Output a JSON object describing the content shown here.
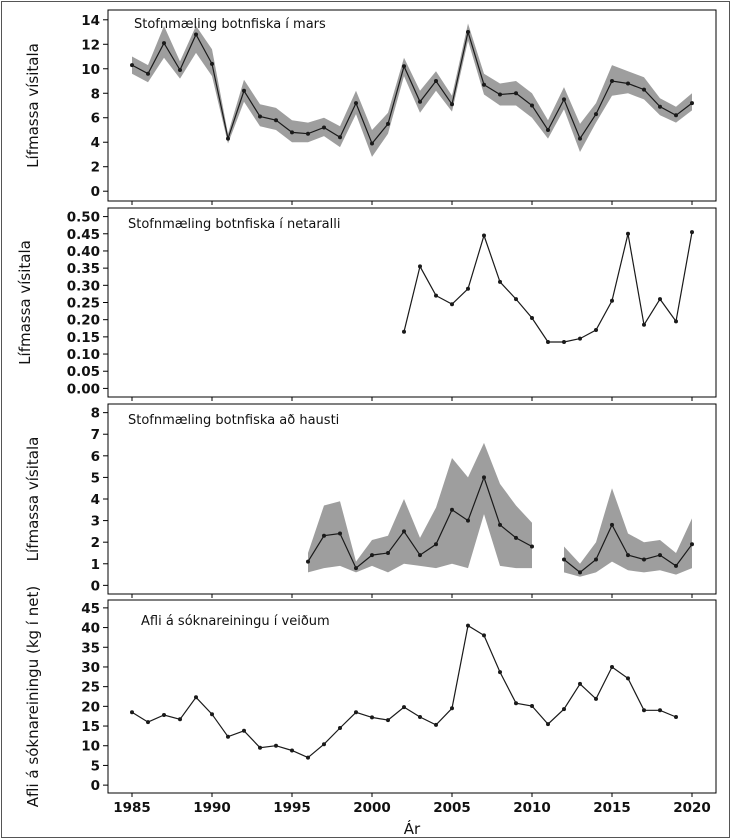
{
  "chart_data": [
    {
      "type": "line",
      "title": "Stofnmæling botnfiska í mars",
      "ylabel": "Lífmassa vísitala",
      "ylim": [
        -0.8,
        14.8
      ],
      "yticks": [
        "0",
        "2",
        "4",
        "6",
        "8",
        "10",
        "12",
        "14"
      ],
      "ytick_values": [
        0,
        2,
        4,
        6,
        8,
        10,
        12,
        14
      ],
      "band": true,
      "series": [
        {
          "x": [
            1985,
            1986,
            1987,
            1988,
            1989,
            1990,
            1991,
            1992,
            1993,
            1994,
            1995,
            1996,
            1997,
            1998,
            1999,
            2000,
            2001,
            2002,
            2003,
            2004,
            2005,
            2006,
            2007,
            2008,
            2009,
            2010,
            2011,
            2012,
            2013,
            2014,
            2015,
            2016,
            2017,
            2018,
            2019,
            2020
          ],
          "values": [
            10.3,
            9.6,
            12.1,
            9.9,
            12.8,
            10.4,
            4.3,
            8.2,
            6.1,
            5.8,
            4.8,
            4.7,
            5.2,
            4.4,
            7.2,
            3.9,
            5.5,
            10.2,
            7.3,
            9.0,
            7.1,
            13.0,
            8.7,
            7.9,
            8.0,
            7.0,
            5.0,
            7.5,
            4.3,
            6.3,
            9.0,
            8.8,
            8.3,
            6.9,
            6.2,
            7.2
          ],
          "lower": [
            9.6,
            8.9,
            10.9,
            9.2,
            11.3,
            9.4,
            3.9,
            7.3,
            5.3,
            5.0,
            4.0,
            4.0,
            4.5,
            3.6,
            6.3,
            2.8,
            4.7,
            9.4,
            6.4,
            8.2,
            6.5,
            12.3,
            7.9,
            7.0,
            7.0,
            6.0,
            4.3,
            6.7,
            3.2,
            5.6,
            7.8,
            8.0,
            7.5,
            6.2,
            5.6,
            6.6
          ],
          "upper": [
            11.0,
            10.3,
            13.5,
            10.6,
            13.5,
            11.6,
            4.7,
            9.1,
            7.1,
            6.8,
            5.8,
            5.6,
            6.0,
            5.3,
            8.2,
            5.0,
            6.4,
            10.9,
            8.2,
            9.8,
            7.8,
            13.7,
            9.6,
            8.8,
            9.0,
            8.0,
            5.8,
            8.5,
            5.5,
            7.2,
            10.3,
            9.8,
            9.3,
            7.6,
            6.9,
            8.0
          ]
        }
      ]
    },
    {
      "type": "line",
      "title": "Stofnmæling botnfiska í netaralli",
      "ylabel": "Lífmassa vísitala",
      "ylim": [
        -0.025,
        0.525
      ],
      "yticks": [
        "0.00",
        "0.05",
        "0.10",
        "0.15",
        "0.20",
        "0.25",
        "0.30",
        "0.35",
        "0.40",
        "0.45",
        "0.50"
      ],
      "ytick_values": [
        0,
        0.05,
        0.1,
        0.15,
        0.2,
        0.25,
        0.3,
        0.35,
        0.4,
        0.45,
        0.5
      ],
      "band": false,
      "series": [
        {
          "x": [
            2002,
            2003,
            2004,
            2005,
            2006,
            2007,
            2008,
            2009,
            2010,
            2011,
            2012,
            2013,
            2014,
            2015,
            2016,
            2017,
            2018,
            2019,
            2020
          ],
          "values": [
            0.165,
            0.355,
            0.27,
            0.245,
            0.29,
            0.445,
            0.31,
            0.26,
            0.205,
            0.135,
            0.135,
            0.145,
            0.17,
            0.255,
            0.45,
            0.185,
            0.26,
            0.195,
            0.455
          ]
        }
      ]
    },
    {
      "type": "line",
      "title": "Stofnmæling botnfiska að hausti",
      "ylabel": "Lífmassa vísitala",
      "ylim": [
        -0.4,
        8.4
      ],
      "yticks": [
        "0",
        "1",
        "2",
        "3",
        "4",
        "5",
        "6",
        "7",
        "8"
      ],
      "ytick_values": [
        0,
        1,
        2,
        3,
        4,
        5,
        6,
        7,
        8
      ],
      "band": true,
      "series": [
        {
          "x": [
            1996,
            1997,
            1998,
            1999,
            2000,
            2001,
            2002,
            2003,
            2004,
            2005,
            2006,
            2007,
            2008,
            2009,
            2010
          ],
          "values": [
            1.1,
            2.3,
            2.4,
            0.8,
            1.4,
            1.5,
            2.5,
            1.4,
            1.9,
            3.5,
            3.0,
            5.0,
            2.8,
            2.2,
            1.8
          ],
          "lower": [
            0.6,
            0.8,
            0.9,
            0.6,
            0.9,
            0.6,
            1.0,
            0.9,
            0.8,
            1.0,
            0.8,
            3.3,
            0.9,
            0.8,
            0.8
          ],
          "upper": [
            1.5,
            3.7,
            3.9,
            1.1,
            2.1,
            2.3,
            4.0,
            2.2,
            3.6,
            5.9,
            5.0,
            6.6,
            4.7,
            3.7,
            2.9
          ]
        },
        {
          "x": [
            2012,
            2013,
            2014,
            2015,
            2016,
            2017,
            2018,
            2019,
            2020
          ],
          "values": [
            1.2,
            0.6,
            1.2,
            2.8,
            1.4,
            1.2,
            1.4,
            0.9,
            1.9
          ],
          "lower": [
            0.6,
            0.4,
            0.6,
            1.1,
            0.7,
            0.6,
            0.7,
            0.5,
            0.8
          ],
          "upper": [
            1.8,
            1.0,
            2.0,
            4.5,
            2.4,
            2.0,
            2.1,
            1.5,
            3.1
          ]
        }
      ]
    },
    {
      "type": "line",
      "title": "Afli á sóknareiningu í veiðum",
      "ylabel": "Afli á sóknareiningu (kg í net)",
      "xlabel": "Ár",
      "ylim": [
        -2,
        47
      ],
      "yticks": [
        "0",
        "5",
        "10",
        "15",
        "20",
        "25",
        "30",
        "35",
        "40",
        "45"
      ],
      "ytick_values": [
        0,
        5,
        10,
        15,
        20,
        25,
        30,
        35,
        40,
        45
      ],
      "xticks": [
        "1985",
        "1990",
        "1995",
        "2000",
        "2005",
        "2010",
        "2015",
        "2020"
      ],
      "xtick_values": [
        1985,
        1990,
        1995,
        2000,
        2005,
        2010,
        2015,
        2020
      ],
      "band": false,
      "series": [
        {
          "x": [
            1985,
            1986,
            1987,
            1988,
            1989,
            1990,
            1991,
            1992,
            1993,
            1994,
            1995,
            1996,
            1997,
            1998,
            1999,
            2000,
            2001,
            2002,
            2003,
            2004,
            2005,
            2006,
            2007,
            2008,
            2009,
            2010,
            2011,
            2012,
            2013,
            2014,
            2015,
            2016,
            2017,
            2018,
            2019
          ],
          "values": [
            18.5,
            16,
            17.8,
            16.7,
            22.3,
            18,
            12.3,
            13.8,
            9.5,
            10,
            8.8,
            7,
            10.4,
            14.5,
            18.5,
            17.2,
            16.5,
            19.8,
            17.3,
            15.3,
            19.5,
            40.5,
            38,
            28.7,
            20.8,
            20.1,
            15.5,
            19.3,
            25.7,
            21.9,
            30,
            27.1,
            19,
            19,
            17.3
          ]
        }
      ]
    }
  ],
  "x_range": [
    1983.5,
    2021.5
  ],
  "colors": {
    "line": "#1a1a1a",
    "band": "#9e9e9e",
    "axis": "#000000",
    "frame": "#000000",
    "marker": "#1a1a1a"
  }
}
